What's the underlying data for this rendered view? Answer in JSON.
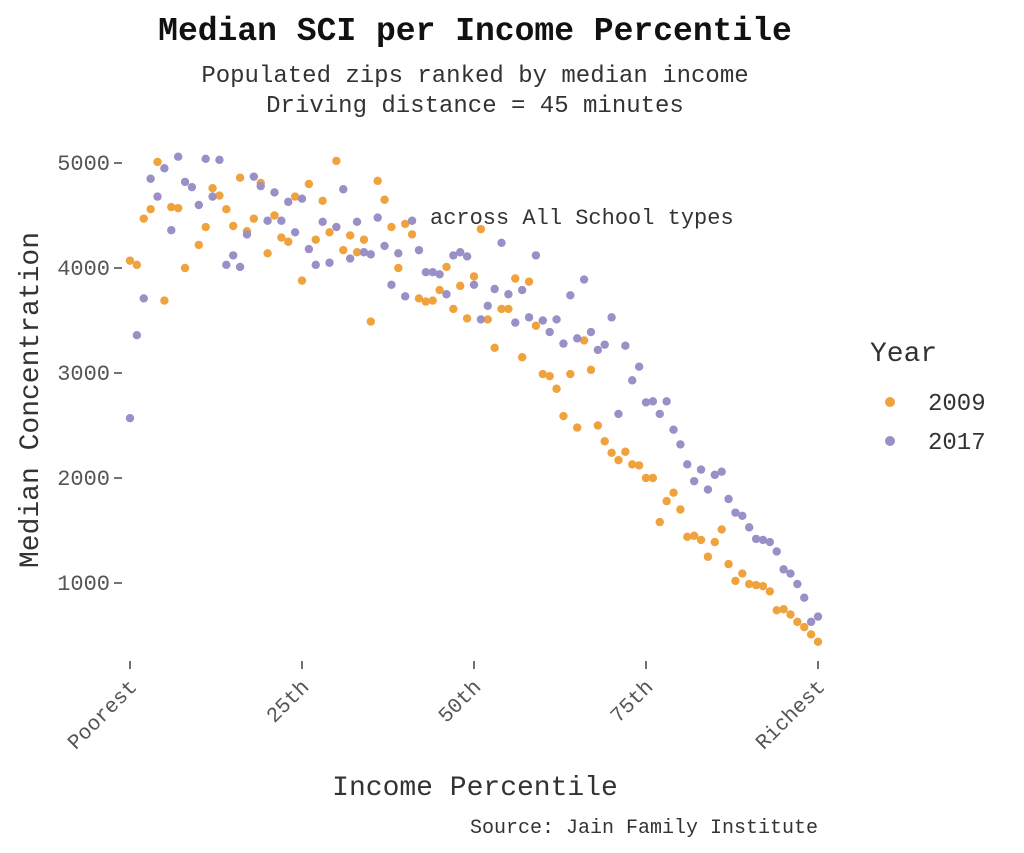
{
  "chart_data": {
    "type": "scatter",
    "title": "Median SCI per Income Percentile",
    "subtitle": [
      "Populated zips ranked by median income",
      "Driving distance = 45 minutes"
    ],
    "annotation": "across All School types",
    "xlabel": "Income Percentile",
    "ylabel": "Median Concentration",
    "caption": "Source: Jain Family Institute",
    "legend": {
      "title": "Year",
      "placement": "right"
    },
    "xlim": [
      0,
      100
    ],
    "ylim": [
      250,
      5200
    ],
    "x_ticks": [
      {
        "value": 0,
        "label": "Poorest"
      },
      {
        "value": 25,
        "label": "25th"
      },
      {
        "value": 50,
        "label": "50th"
      },
      {
        "value": 75,
        "label": "75th"
      },
      {
        "value": 100,
        "label": "Richest"
      }
    ],
    "y_ticks": [
      1000,
      2000,
      3000,
      4000,
      5000
    ],
    "grid": false,
    "series": [
      {
        "name": "2009",
        "color": "#f0a23c",
        "points": [
          [
            0,
            4070
          ],
          [
            1,
            4030
          ],
          [
            2,
            4470
          ],
          [
            3,
            4560
          ],
          [
            4,
            5010
          ],
          [
            5,
            3690
          ],
          [
            6,
            4580
          ],
          [
            7,
            4570
          ],
          [
            8,
            4000
          ],
          [
            10,
            4220
          ],
          [
            11,
            4390
          ],
          [
            12,
            4760
          ],
          [
            13,
            4690
          ],
          [
            14,
            4560
          ],
          [
            15,
            4400
          ],
          [
            16,
            4860
          ],
          [
            17,
            4350
          ],
          [
            18,
            4470
          ],
          [
            19,
            4810
          ],
          [
            20,
            4140
          ],
          [
            21,
            4500
          ],
          [
            22,
            4290
          ],
          [
            23,
            4250
          ],
          [
            24,
            4680
          ],
          [
            25,
            3880
          ],
          [
            26,
            4800
          ],
          [
            27,
            4270
          ],
          [
            28,
            4640
          ],
          [
            29,
            4340
          ],
          [
            30,
            5020
          ],
          [
            31,
            4170
          ],
          [
            32,
            4310
          ],
          [
            33,
            4150
          ],
          [
            34,
            4270
          ],
          [
            35,
            3490
          ],
          [
            36,
            4830
          ],
          [
            37,
            4650
          ],
          [
            38,
            4390
          ],
          [
            39,
            4000
          ],
          [
            40,
            4420
          ],
          [
            41,
            4320
          ],
          [
            42,
            3710
          ],
          [
            43,
            3680
          ],
          [
            44,
            3690
          ],
          [
            45,
            3790
          ],
          [
            46,
            4010
          ],
          [
            47,
            3610
          ],
          [
            48,
            3830
          ],
          [
            49,
            3520
          ],
          [
            50,
            3920
          ],
          [
            51,
            4370
          ],
          [
            52,
            3510
          ],
          [
            53,
            3240
          ],
          [
            54,
            3610
          ],
          [
            55,
            3610
          ],
          [
            56,
            3900
          ],
          [
            57,
            3150
          ],
          [
            58,
            3870
          ],
          [
            59,
            3450
          ],
          [
            60,
            2990
          ],
          [
            61,
            2970
          ],
          [
            62,
            2850
          ],
          [
            63,
            2590
          ],
          [
            64,
            2990
          ],
          [
            65,
            2480
          ],
          [
            66,
            3310
          ],
          [
            67,
            3030
          ],
          [
            68,
            2500
          ],
          [
            69,
            2350
          ],
          [
            70,
            2240
          ],
          [
            71,
            2170
          ],
          [
            72,
            2250
          ],
          [
            73,
            2130
          ],
          [
            74,
            2120
          ],
          [
            75,
            2000
          ],
          [
            76,
            2000
          ],
          [
            77,
            1580
          ],
          [
            78,
            1780
          ],
          [
            79,
            1860
          ],
          [
            80,
            1700
          ],
          [
            81,
            1440
          ],
          [
            82,
            1450
          ],
          [
            83,
            1410
          ],
          [
            84,
            1250
          ],
          [
            85,
            1390
          ],
          [
            86,
            1510
          ],
          [
            87,
            1180
          ],
          [
            88,
            1020
          ],
          [
            89,
            1090
          ],
          [
            90,
            990
          ],
          [
            91,
            980
          ],
          [
            92,
            970
          ],
          [
            93,
            920
          ],
          [
            94,
            740
          ],
          [
            95,
            750
          ],
          [
            96,
            700
          ],
          [
            97,
            630
          ],
          [
            98,
            580
          ],
          [
            99,
            510
          ],
          [
            100,
            440
          ]
        ]
      },
      {
        "name": "2017",
        "color": "#9a8fc6",
        "points": [
          [
            0,
            2570
          ],
          [
            1,
            3360
          ],
          [
            2,
            3710
          ],
          [
            3,
            4850
          ],
          [
            4,
            4680
          ],
          [
            5,
            4950
          ],
          [
            6,
            4360
          ],
          [
            7,
            5060
          ],
          [
            8,
            4820
          ],
          [
            9,
            4770
          ],
          [
            10,
            4600
          ],
          [
            11,
            5040
          ],
          [
            12,
            4680
          ],
          [
            13,
            5030
          ],
          [
            14,
            4030
          ],
          [
            15,
            4120
          ],
          [
            16,
            4010
          ],
          [
            17,
            4320
          ],
          [
            18,
            4870
          ],
          [
            19,
            4780
          ],
          [
            20,
            4450
          ],
          [
            21,
            4720
          ],
          [
            22,
            4450
          ],
          [
            23,
            4630
          ],
          [
            24,
            4340
          ],
          [
            25,
            4660
          ],
          [
            26,
            4180
          ],
          [
            27,
            4030
          ],
          [
            28,
            4440
          ],
          [
            29,
            4050
          ],
          [
            30,
            4390
          ],
          [
            31,
            4750
          ],
          [
            32,
            4090
          ],
          [
            33,
            4440
          ],
          [
            34,
            4150
          ],
          [
            35,
            4130
          ],
          [
            36,
            4480
          ],
          [
            37,
            4210
          ],
          [
            38,
            3840
          ],
          [
            39,
            4140
          ],
          [
            40,
            3730
          ],
          [
            41,
            4450
          ],
          [
            42,
            4170
          ],
          [
            43,
            3960
          ],
          [
            44,
            3960
          ],
          [
            45,
            3940
          ],
          [
            46,
            3750
          ],
          [
            47,
            4120
          ],
          [
            48,
            4150
          ],
          [
            49,
            4110
          ],
          [
            50,
            3840
          ],
          [
            51,
            3510
          ],
          [
            52,
            3640
          ],
          [
            53,
            3800
          ],
          [
            54,
            4240
          ],
          [
            55,
            3750
          ],
          [
            56,
            3480
          ],
          [
            57,
            3790
          ],
          [
            58,
            3530
          ],
          [
            59,
            4120
          ],
          [
            60,
            3500
          ],
          [
            61,
            3390
          ],
          [
            62,
            3510
          ],
          [
            63,
            3280
          ],
          [
            64,
            3740
          ],
          [
            65,
            3330
          ],
          [
            66,
            3890
          ],
          [
            67,
            3390
          ],
          [
            68,
            3220
          ],
          [
            69,
            3270
          ],
          [
            70,
            3530
          ],
          [
            71,
            2610
          ],
          [
            72,
            3260
          ],
          [
            73,
            2930
          ],
          [
            74,
            3060
          ],
          [
            75,
            2720
          ],
          [
            76,
            2730
          ],
          [
            77,
            2610
          ],
          [
            78,
            2730
          ],
          [
            79,
            2460
          ],
          [
            80,
            2320
          ],
          [
            81,
            2130
          ],
          [
            82,
            1970
          ],
          [
            83,
            2080
          ],
          [
            84,
            1890
          ],
          [
            85,
            2030
          ],
          [
            86,
            2060
          ],
          [
            87,
            1800
          ],
          [
            88,
            1670
          ],
          [
            89,
            1640
          ],
          [
            90,
            1530
          ],
          [
            91,
            1420
          ],
          [
            92,
            1410
          ],
          [
            93,
            1390
          ],
          [
            94,
            1300
          ],
          [
            95,
            1130
          ],
          [
            96,
            1090
          ],
          [
            97,
            990
          ],
          [
            98,
            860
          ],
          [
            99,
            630
          ],
          [
            100,
            680
          ]
        ]
      }
    ]
  }
}
